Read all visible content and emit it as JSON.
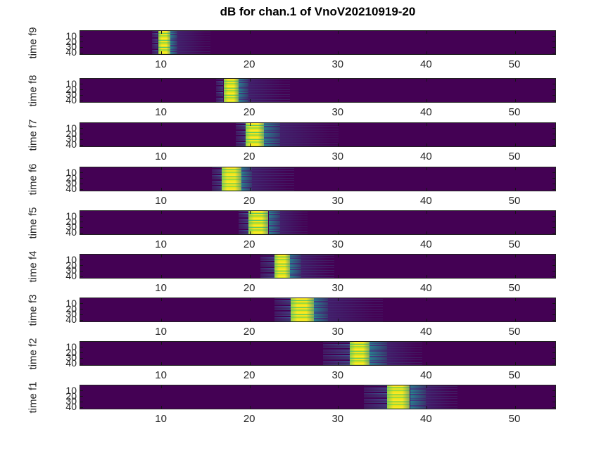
{
  "title": "dB for chan.1 of VnoV20210919-20",
  "chart_data": {
    "type": "heatmap",
    "title": "dB for chan.1 of VnoV20210919-20",
    "colormap": "viridis",
    "x_ticks": [
      10,
      20,
      30,
      40,
      50
    ],
    "y_ticks": [
      10,
      20,
      30,
      40
    ],
    "xlim": [
      0.8,
      54.7
    ],
    "ylim": [
      0,
      45
    ],
    "grid": false,
    "legend": "none",
    "colors": {
      "background": "#440154",
      "core_bright": "#fde725",
      "core_green": "#5ec962",
      "mid_teal": "#2a788e",
      "mid_blue": "#414487",
      "axis": "#262626"
    },
    "panels": [
      {
        "ylabel": "time f9",
        "blob": {
          "pre": [
            8.9,
            9.6
          ],
          "core": [
            9.6,
            11.0
          ],
          "mid": [
            11.0,
            11.8
          ],
          "tail": [
            11.8,
            15.5
          ]
        }
      },
      {
        "ylabel": "time f8",
        "blob": {
          "pre": [
            16.2,
            17.0
          ],
          "core": [
            17.0,
            18.7
          ],
          "mid": [
            18.7,
            19.8
          ],
          "tail": [
            19.8,
            24.5
          ]
        }
      },
      {
        "ylabel": "time f7",
        "blob": {
          "pre": [
            18.4,
            19.5
          ],
          "core": [
            19.5,
            21.6
          ],
          "mid": [
            21.6,
            23.4
          ],
          "tail": [
            23.4,
            30.0
          ]
        }
      },
      {
        "ylabel": "time f6",
        "blob": {
          "pre": [
            15.7,
            16.8
          ],
          "core": [
            16.8,
            19.0
          ],
          "mid": [
            19.0,
            20.2
          ],
          "tail": [
            20.2,
            25.0
          ]
        }
      },
      {
        "ylabel": "time f5",
        "blob": {
          "pre": [
            18.7,
            19.8
          ],
          "core": [
            19.8,
            22.1
          ],
          "mid": [
            22.1,
            23.4
          ],
          "tail": [
            23.4,
            26.5
          ]
        }
      },
      {
        "ylabel": "time f4",
        "blob": {
          "pre": [
            21.2,
            22.8
          ],
          "core": [
            22.8,
            24.5
          ],
          "mid": [
            24.5,
            25.8
          ],
          "tail": [
            25.8,
            29.5
          ]
        }
      },
      {
        "ylabel": "time f3",
        "blob": {
          "pre": [
            22.8,
            24.6
          ],
          "core": [
            24.6,
            27.2
          ],
          "mid": [
            27.2,
            28.8
          ],
          "tail": [
            28.8,
            35.0
          ]
        }
      },
      {
        "ylabel": "time f2",
        "blob": {
          "pre": [
            28.3,
            31.3
          ],
          "core": [
            31.3,
            33.5
          ],
          "mid": [
            33.5,
            35.5
          ],
          "tail": [
            35.5,
            39.5
          ]
        }
      },
      {
        "ylabel": "time f1",
        "blob": {
          "pre": [
            32.9,
            35.5
          ],
          "core": [
            35.5,
            38.1
          ],
          "mid": [
            38.1,
            39.9
          ],
          "tail": [
            39.9,
            43.5
          ]
        }
      }
    ]
  }
}
